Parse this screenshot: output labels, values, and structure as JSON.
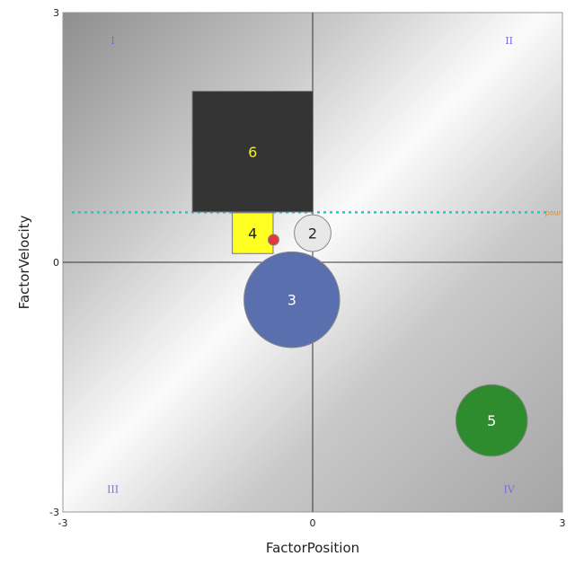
{
  "chart_data": {
    "type": "scatter",
    "xlabel": "FactorPosition",
    "ylabel": "FactorVelocity",
    "xlim": [
      -3,
      3
    ],
    "ylim": [
      -3,
      3
    ],
    "x_ticks": [
      "-3",
      "0",
      "3"
    ],
    "y_ticks": [
      "-3",
      "0",
      "3"
    ],
    "grid": false,
    "quadrant_labels": [
      {
        "text": "I",
        "x": -2.4,
        "y": 2.62
      },
      {
        "text": "II",
        "x": 2.36,
        "y": 2.62
      },
      {
        "text": "III",
        "x": -2.4,
        "y": -2.77
      },
      {
        "text": "IV",
        "x": 2.36,
        "y": -2.77
      }
    ],
    "reference_line": {
      "y": 0.6,
      "label": "pour",
      "color": "#2bc4cc"
    },
    "points": [
      {
        "label": "6",
        "shape": "square",
        "x": -0.72,
        "y": 1.33,
        "size": 1.45,
        "color": "#343434",
        "text_color": "#f2ee2a"
      },
      {
        "label": "4",
        "shape": "square",
        "x": -0.72,
        "y": 0.35,
        "size": 0.49,
        "color": "#ffff22",
        "text_color": "#222222"
      },
      {
        "label": "2",
        "shape": "circle",
        "x": 0.0,
        "y": 0.35,
        "size": 0.44,
        "color": "#e8e8e8",
        "text_color": "#222222"
      },
      {
        "label": "3",
        "shape": "circle",
        "x": -0.25,
        "y": -0.45,
        "size": 1.15,
        "color": "#5a6fae",
        "text_color": "#ffffff"
      },
      {
        "label": "5",
        "shape": "circle",
        "x": 2.15,
        "y": -1.9,
        "size": 0.86,
        "color": "#2e8b2e",
        "text_color": "#ffffff"
      },
      {
        "label": "",
        "shape": "circle",
        "x": -0.47,
        "y": 0.27,
        "size": 0.13,
        "color": "#e03a3a",
        "text_color": "#ffffff"
      }
    ]
  }
}
